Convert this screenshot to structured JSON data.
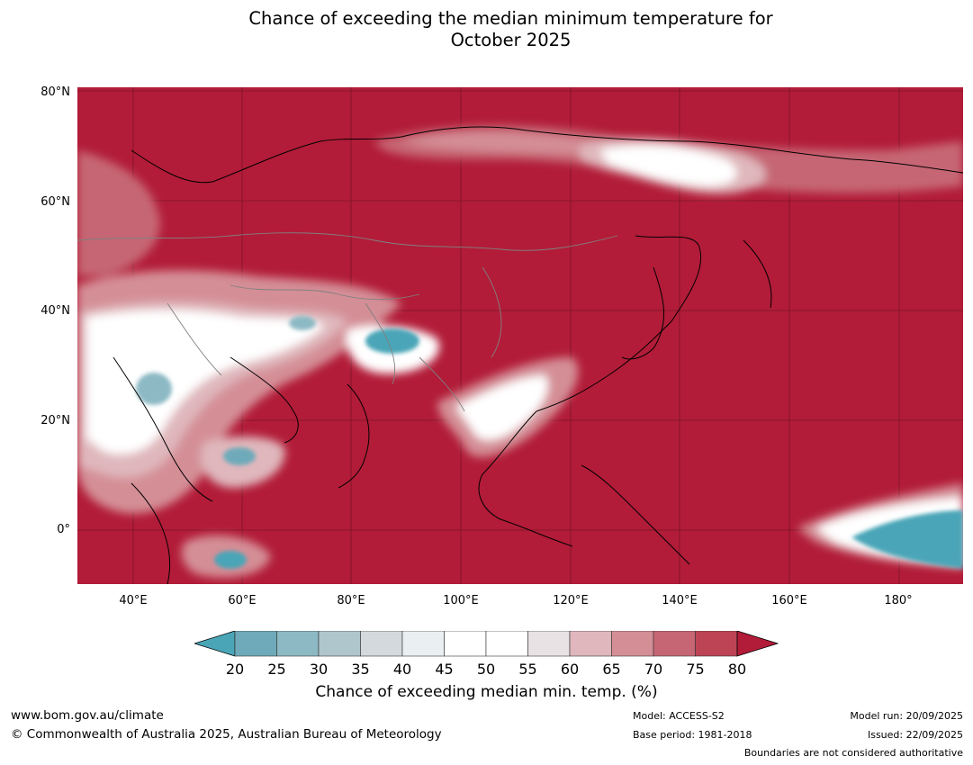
{
  "title": {
    "line1": "Chance of exceeding the median minimum temperature for",
    "line2": "October 2025"
  },
  "map": {
    "lat_labels": [
      "80°N",
      "60°N",
      "40°N",
      "20°N",
      "0°"
    ],
    "lon_labels": [
      "40°E",
      "60°E",
      "80°E",
      "100°E",
      "120°E",
      "140°E",
      "160°E",
      "180°"
    ],
    "background_color": "#b21c38"
  },
  "colorbar": {
    "ticks": [
      "20",
      "25",
      "30",
      "35",
      "40",
      "45",
      "50",
      "55",
      "60",
      "65",
      "70",
      "75",
      "80"
    ],
    "colors": [
      "#4aa5b7",
      "#6eaab9",
      "#8cb9c4",
      "#afc7cc",
      "#d3d9dc",
      "#eaeff1",
      "#ffffff",
      "#ffffff",
      "#e8e2e5",
      "#dfb7bc",
      "#d48e96",
      "#c66674",
      "#bc4454",
      "#b21c38"
    ],
    "label": "Chance of exceeding median min. temp. (%)"
  },
  "footer": {
    "website": "www.bom.gov.au/climate",
    "copyright": "© Commonwealth of Australia 2025, Australian Bureau of Meteorology",
    "model": "Model: ACCESS-S2",
    "base_period": "Base period: 1981-2018",
    "model_run": "Model run: 20/09/2025",
    "issued": "Issued: 22/09/2025",
    "disclaimer": "Boundaries are not considered authoritative"
  }
}
